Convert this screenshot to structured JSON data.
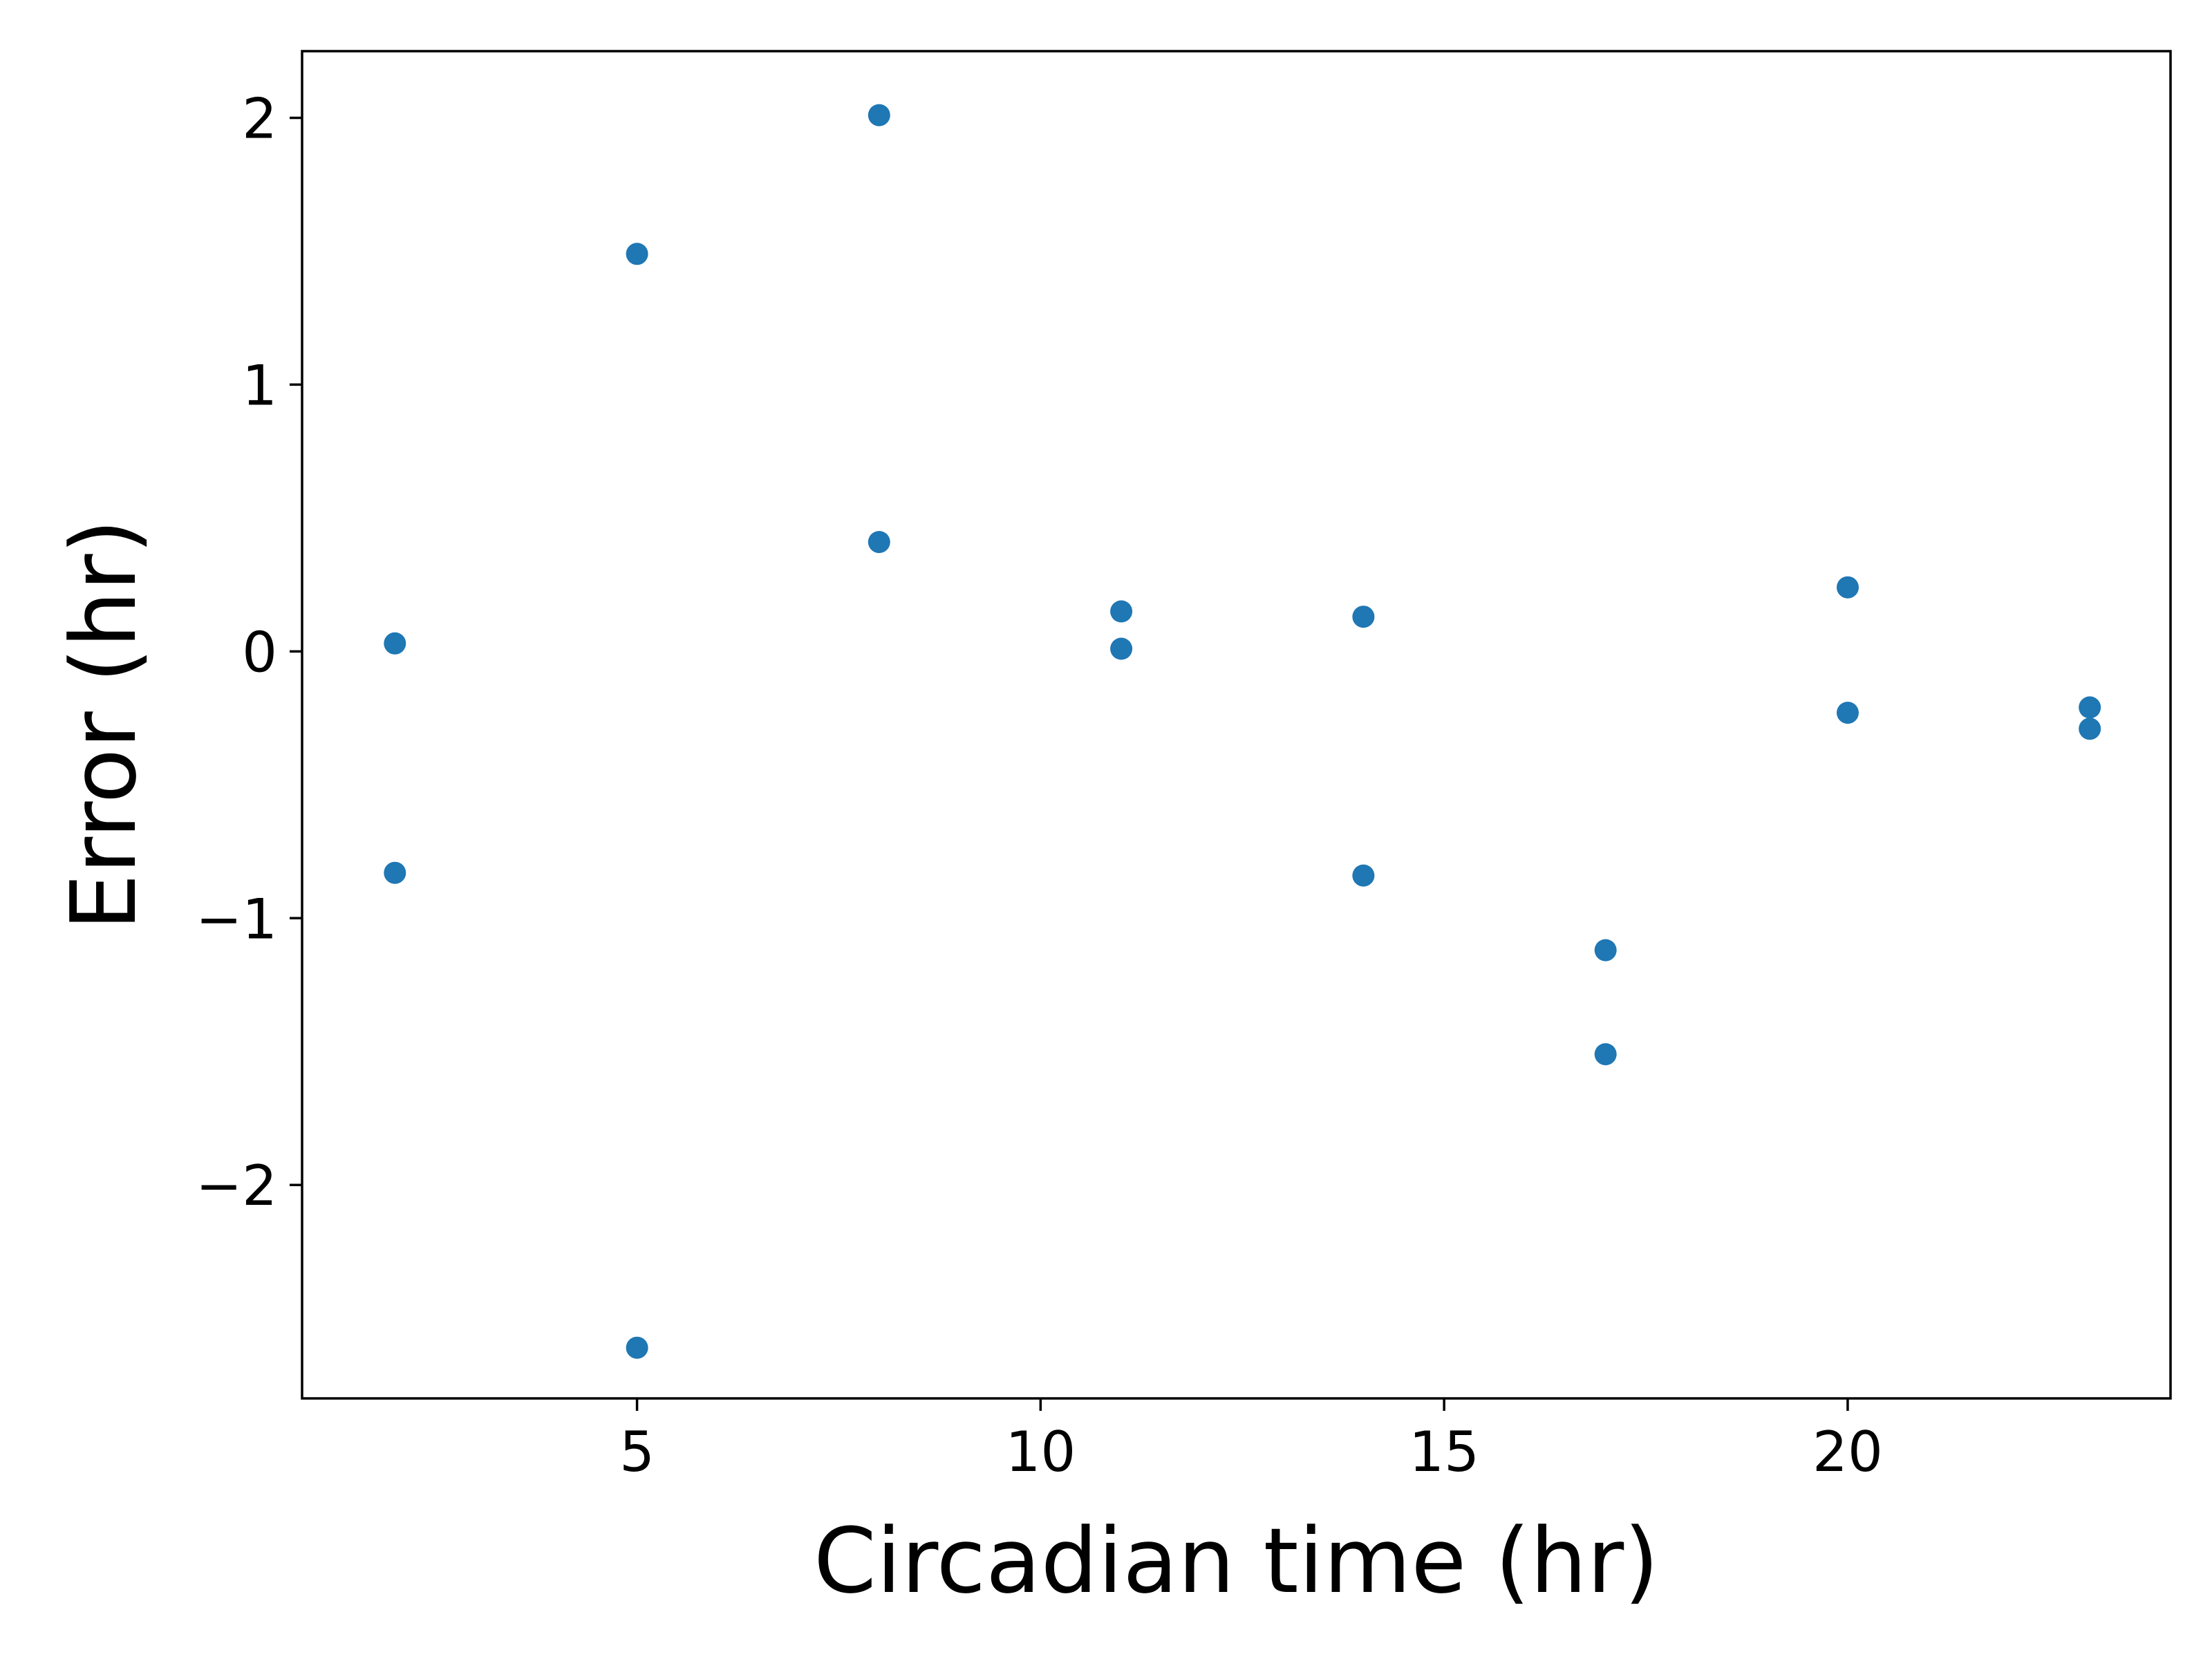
{
  "chart_data": {
    "type": "scatter",
    "xlabel": "Circadian time (hr)",
    "ylabel": "Error (hr)",
    "xlim": [
      0.85,
      24.0
    ],
    "ylim": [
      -2.8,
      2.25
    ],
    "xticks": [
      5,
      10,
      15,
      20
    ],
    "xtick_labels": [
      "5",
      "10",
      "15",
      "20"
    ],
    "yticks": [
      2,
      1,
      0,
      -1,
      -2
    ],
    "ytick_labels": [
      "2",
      "1",
      "0",
      "−1",
      "−2"
    ],
    "grid": false,
    "legend": "none",
    "series": [
      {
        "color": "#1f77b4",
        "points": [
          {
            "x": 2,
            "y": 0.03
          },
          {
            "x": 2,
            "y": -0.83
          },
          {
            "x": 5,
            "y": 1.49
          },
          {
            "x": 5,
            "y": -2.61
          },
          {
            "x": 8,
            "y": 2.01
          },
          {
            "x": 8,
            "y": 0.41
          },
          {
            "x": 11,
            "y": 0.15
          },
          {
            "x": 11,
            "y": 0.01
          },
          {
            "x": 14,
            "y": 0.13
          },
          {
            "x": 14,
            "y": -0.84
          },
          {
            "x": 17,
            "y": -1.12
          },
          {
            "x": 17,
            "y": -1.51
          },
          {
            "x": 20,
            "y": 0.24
          },
          {
            "x": 20,
            "y": -0.23
          },
          {
            "x": 23,
            "y": -0.21
          },
          {
            "x": 23,
            "y": -0.29
          }
        ]
      }
    ]
  }
}
